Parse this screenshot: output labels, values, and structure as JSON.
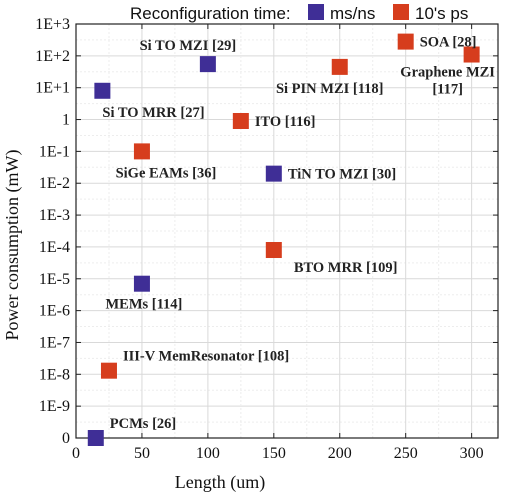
{
  "chart_data": {
    "type": "scatter",
    "title": "",
    "xlabel": "Length (um)",
    "ylabel": "Power consumption (mW)",
    "xlim": [
      0,
      320
    ],
    "x_ticks": [
      0,
      50,
      100,
      150,
      200,
      250,
      300
    ],
    "y_ticks": [
      "0",
      "1E-9",
      "1E-8",
      "1E-7",
      "1E-6",
      "1E-5",
      "1E-4",
      "1E-3",
      "1E-2",
      "1E-1",
      "1",
      "1E+1",
      "1E+2",
      "1E+3"
    ],
    "grid": true,
    "legend": {
      "title": "Reconfiguration time:",
      "placement": "top",
      "entries": [
        {
          "name": "ms/ns",
          "color": "#3f2e96"
        },
        {
          "name": "10's ps",
          "color": "#d63d1d"
        }
      ]
    },
    "series": [
      {
        "name": "ms/ns",
        "color": "#3f2e96",
        "points": [
          {
            "label": "PCMs [26]",
            "x": 15,
            "y": "0",
            "label_pos": "right-above"
          },
          {
            "label": "MEMs [114]",
            "x": 50,
            "y": "7E-6",
            "label_pos": "below"
          },
          {
            "label": "TiN TO MZI [30]",
            "x": 150,
            "y": "2E-2",
            "label_pos": "right"
          },
          {
            "label": "Si TO MRR [27]",
            "x": 20,
            "y": "8",
            "label_pos": "below-right"
          },
          {
            "label": "Si TO MZI [29]",
            "x": 100,
            "y": "55",
            "label_pos": "above"
          }
        ]
      },
      {
        "name": "10's ps",
        "color": "#d63d1d",
        "points": [
          {
            "label": "III-V MemResonator [108]",
            "x": 25,
            "y": "1.3E-8",
            "label_pos": "right-above"
          },
          {
            "label": "SiGe EAMs [36]",
            "x": 50,
            "y": "0.1",
            "label_pos": "below"
          },
          {
            "label": "BTO MRR [109]",
            "x": 150,
            "y": "8E-5",
            "label_pos": "right-below"
          },
          {
            "label": "ITO [116]",
            "x": 125,
            "y": "0.9",
            "label_pos": "right"
          },
          {
            "label": "Si PIN MZI [118]",
            "x": 200,
            "y": "45",
            "label_pos": "below"
          },
          {
            "label": "SOA [28]",
            "x": 250,
            "y": "280",
            "label_pos": "right"
          },
          {
            "label": "Graphene MZI [117]",
            "x": 300,
            "y": "110",
            "label_pos": "below-two-line"
          }
        ]
      }
    ]
  }
}
